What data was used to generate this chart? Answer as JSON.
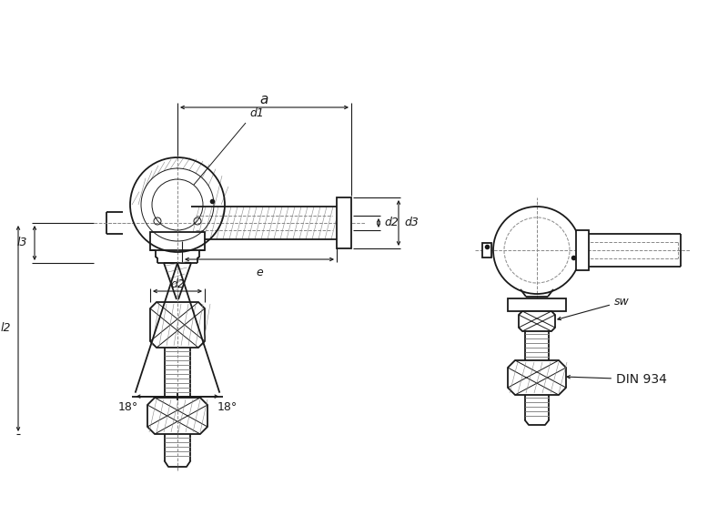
{
  "bg_color": "#ffffff",
  "lc": "#1a1a1a",
  "dc": "#888888",
  "lw_main": 1.3,
  "lw_thin": 0.7,
  "lw_dim": 0.8,
  "labels": {
    "a": "a",
    "d1": "d1",
    "d2_top": "d2",
    "d3": "d3",
    "e": "e",
    "l2": "l2",
    "l3": "l3",
    "d2_bot": "d2",
    "angle1": "18°",
    "angle2": "18°",
    "sw": "sw",
    "din": "DIN 934"
  }
}
